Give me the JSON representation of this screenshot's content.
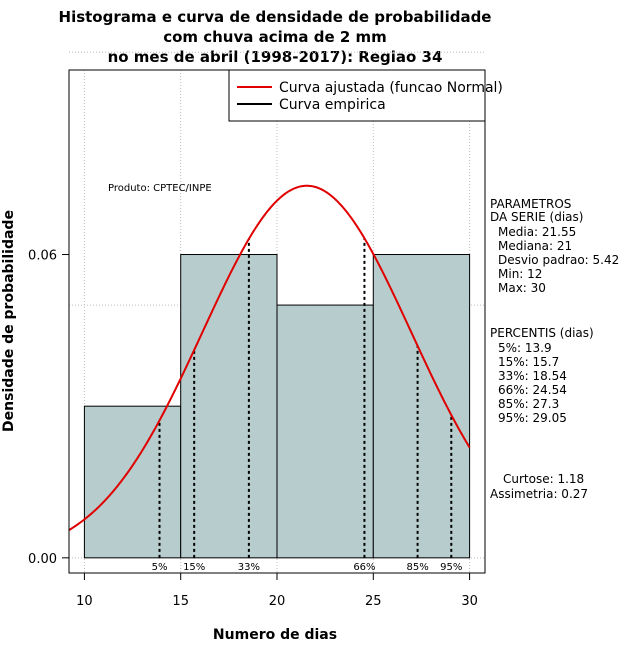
{
  "chart_data": {
    "type": "bar",
    "title_lines": [
      "Histograma e curva de densidade de probabilidade",
      "com chuva acima de 2 mm",
      "no mes de abril (1998-2017): Regiao 34"
    ],
    "xlabel": "Numero de dias",
    "ylabel": "Densidade de probabilidade",
    "xlim": [
      9.2,
      30.8
    ],
    "ylim": [
      -0.003,
      0.0965
    ],
    "x_ticks": [
      10,
      15,
      20,
      25,
      30
    ],
    "y_ticks": [
      0.0,
      0.06
    ],
    "y_tick_labels": [
      "0.00",
      "0.06"
    ],
    "bins": [
      {
        "start": 10,
        "end": 15,
        "density": 0.03
      },
      {
        "start": 15,
        "end": 20,
        "density": 0.06
      },
      {
        "start": 20,
        "end": 25,
        "density": 0.05
      },
      {
        "start": 25,
        "end": 30,
        "density": 0.06
      }
    ],
    "normal_fit": {
      "mean": 21.55,
      "sd": 5.42
    },
    "percentiles": [
      {
        "label": "5%",
        "value": 13.9
      },
      {
        "label": "15%",
        "value": 15.7
      },
      {
        "label": "33%",
        "value": 18.54
      },
      {
        "label": "66%",
        "value": 24.54
      },
      {
        "label": "85%",
        "value": 27.3
      },
      {
        "label": "95%",
        "value": 29.05
      }
    ],
    "legend": [
      {
        "label": "Curva ajustada (funcao Normal)",
        "color": "#e00000"
      },
      {
        "label": "Curva empirica",
        "color": "#000000"
      }
    ],
    "legend_position": "top-right",
    "product_note": "Produto: CPTEC/INPE",
    "bar_color": "#b7cdcd",
    "curve_color": "#e00000"
  },
  "side_panel": {
    "params_title": [
      "PARAMETROS",
      "DA SERIE (dias)"
    ],
    "params": [
      "Media: 21.55",
      "Mediana: 21",
      "Desvio padrao: 5.42",
      "Min: 12",
      "Max: 30"
    ],
    "percentis_title": "PERCENTIS (dias)",
    "percentis": [
      "5%: 13.9",
      "15%: 15.7",
      "33%: 18.54",
      "66%: 24.54",
      "85%: 27.3",
      "95%: 29.05"
    ],
    "curtose": "Curtose: 1.18",
    "assimetria": "Assimetria: 0.27"
  }
}
